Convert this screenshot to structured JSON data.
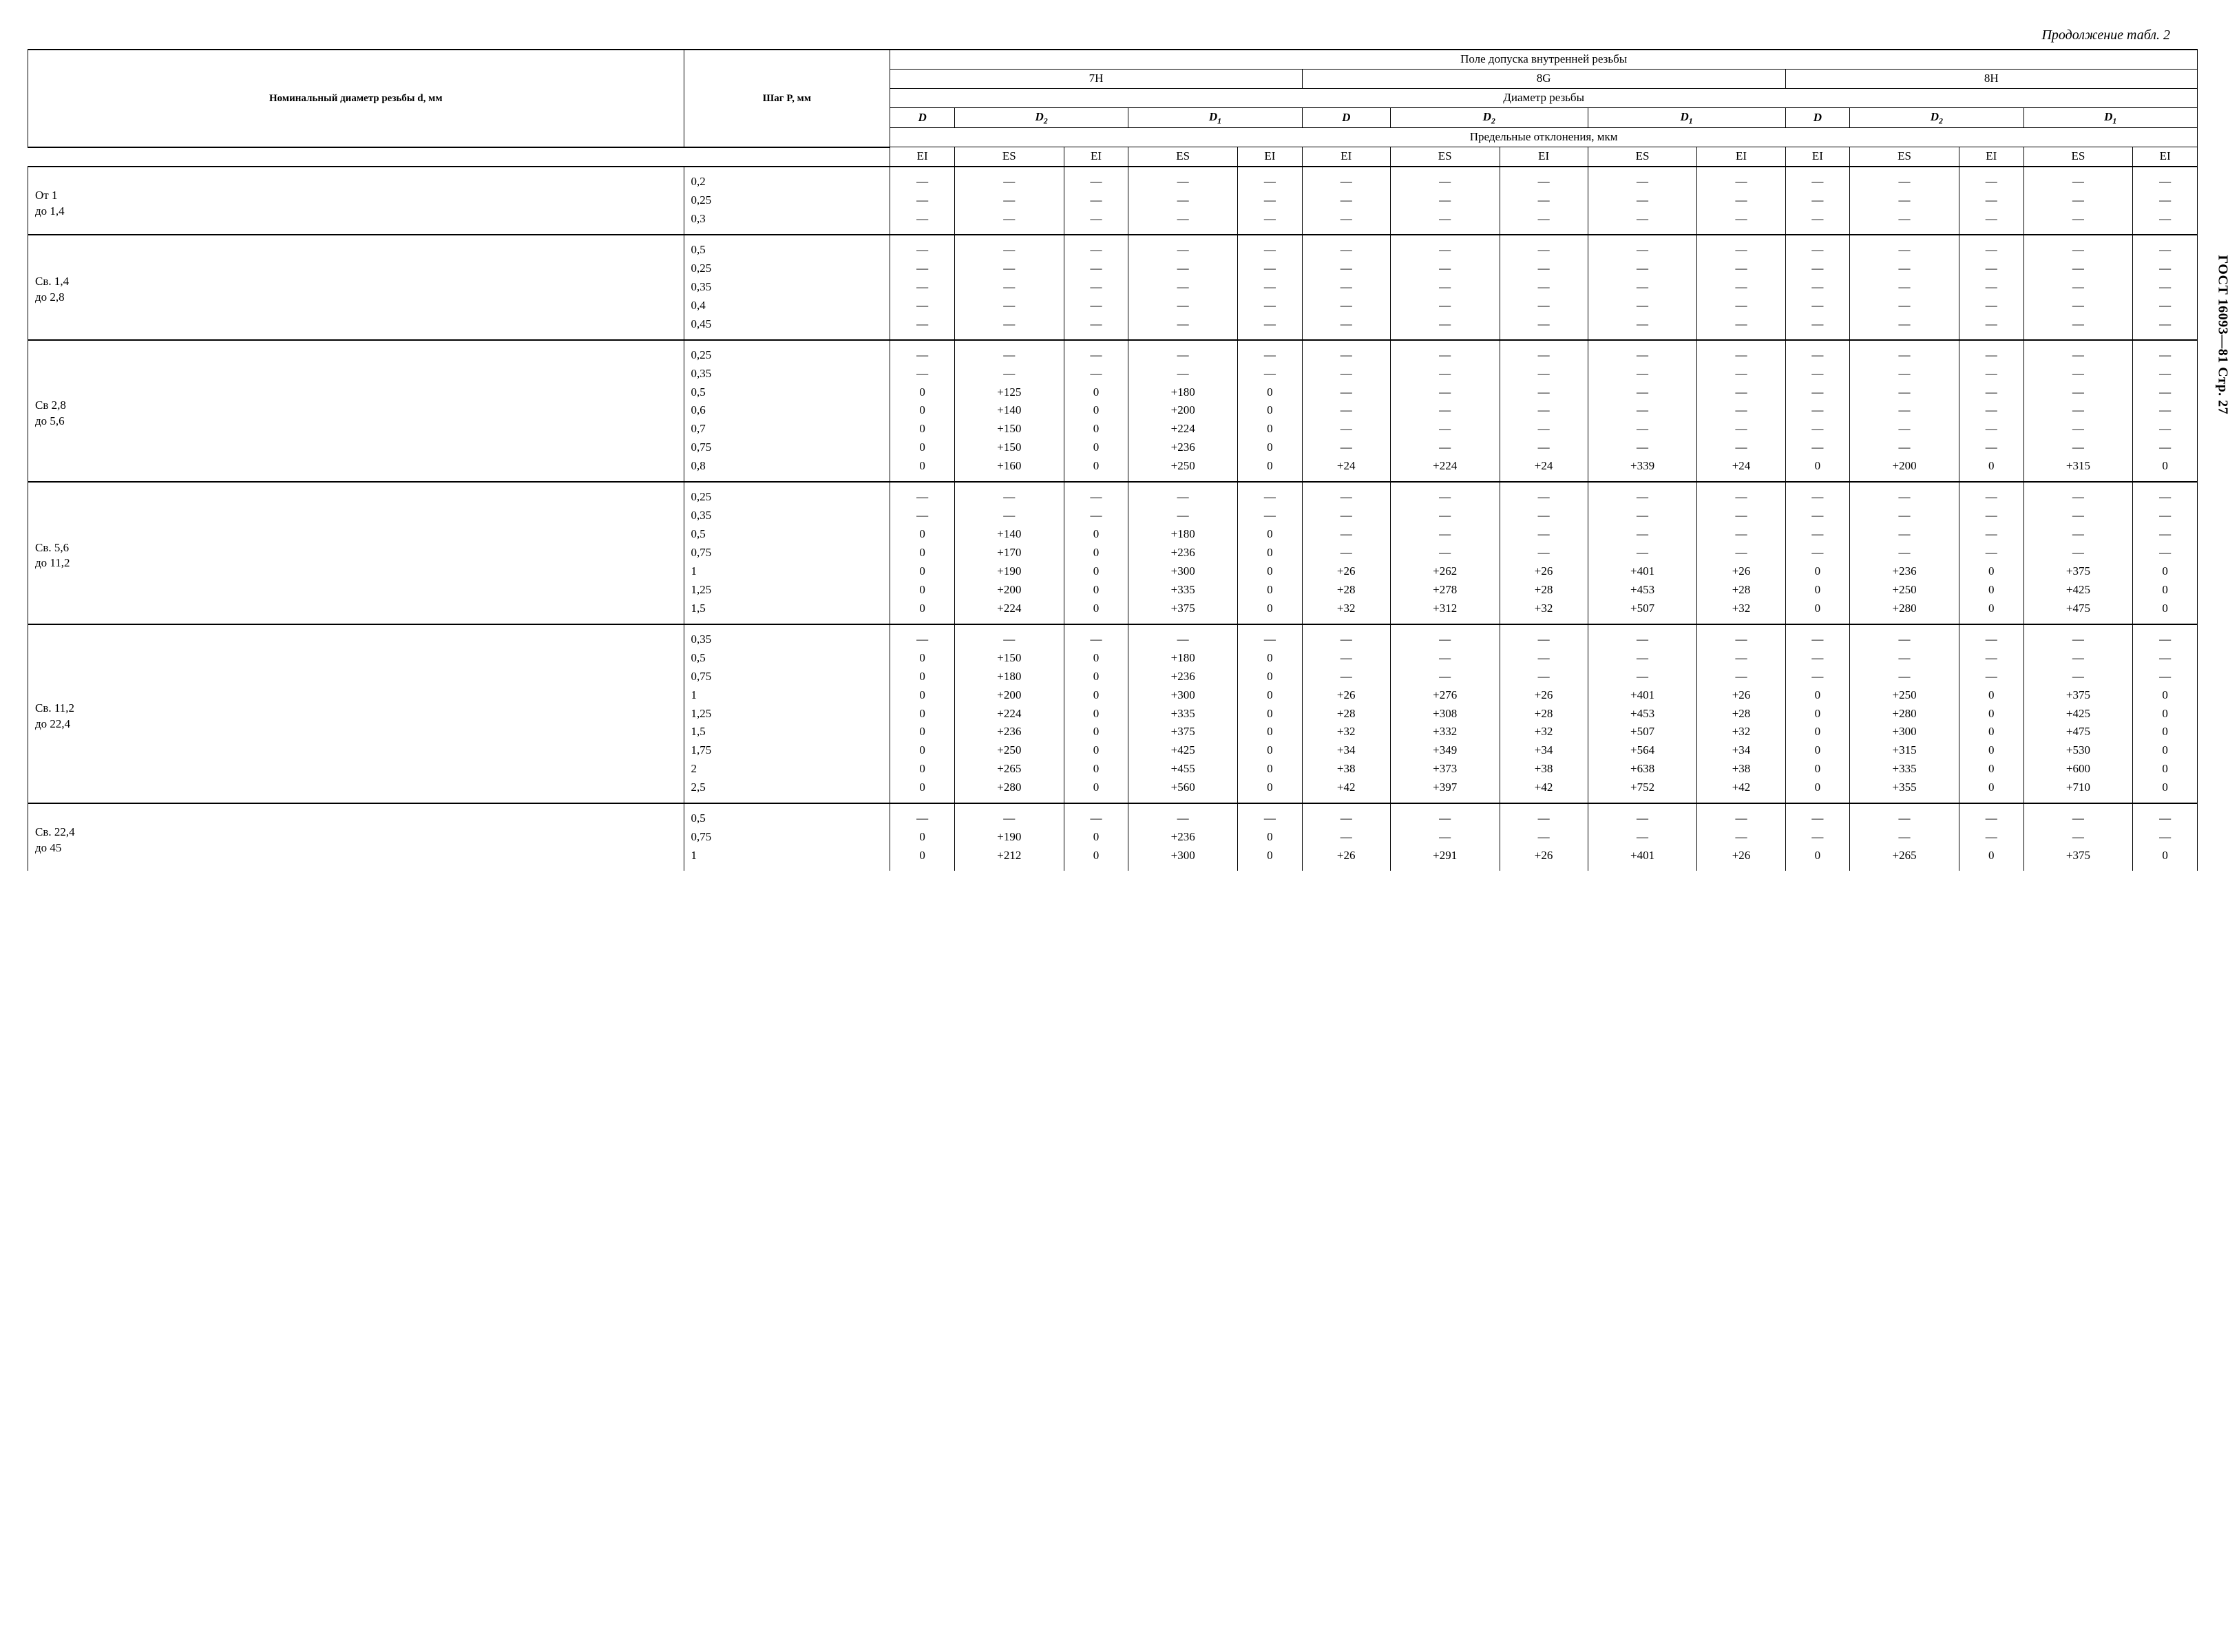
{
  "continuation_label": "Продолжение табл. 2",
  "side_label": "ГОСТ 16093—81 Стр. 27",
  "headers": {
    "nominal_diameter": "Номинальный диаметр резьбы d, мм",
    "pitch": "Шаг P, мм",
    "tolerance_field": "Поле допуска внутренней резьбы",
    "tol_7H": "7H",
    "tol_8G": "8G",
    "tol_8H": "8H",
    "thread_diameter": "Диаметр резьбы",
    "D": "D",
    "D2": "D₂",
    "D1": "D₁",
    "limit_deviations": "Предельные отклонения, мкм",
    "EI": "EI",
    "ES": "ES"
  },
  "groups": [
    {
      "label": "От 1 до 1,4",
      "rows": [
        {
          "pitch": "0,2",
          "c": [
            "—",
            "—",
            "—",
            "—",
            "—",
            "—",
            "—",
            "—",
            "—",
            "—",
            "—",
            "—",
            "—",
            "—",
            "—"
          ]
        },
        {
          "pitch": "0,25",
          "c": [
            "—",
            "—",
            "—",
            "—",
            "—",
            "—",
            "—",
            "—",
            "—",
            "—",
            "—",
            "—",
            "—",
            "—",
            "—"
          ]
        },
        {
          "pitch": "0,3",
          "c": [
            "—",
            "—",
            "—",
            "—",
            "—",
            "—",
            "—",
            "—",
            "—",
            "—",
            "—",
            "—",
            "—",
            "—",
            "—"
          ]
        }
      ]
    },
    {
      "label": "Св. 1,4 до 2,8",
      "rows": [
        {
          "pitch": "0,5",
          "c": [
            "—",
            "—",
            "—",
            "—",
            "—",
            "—",
            "—",
            "—",
            "—",
            "—",
            "—",
            "—",
            "—",
            "—",
            "—"
          ]
        },
        {
          "pitch": "0,25",
          "c": [
            "—",
            "—",
            "—",
            "—",
            "—",
            "—",
            "—",
            "—",
            "—",
            "—",
            "—",
            "—",
            "—",
            "—",
            "—"
          ]
        },
        {
          "pitch": "0,35",
          "c": [
            "—",
            "—",
            "—",
            "—",
            "—",
            "—",
            "—",
            "—",
            "—",
            "—",
            "—",
            "—",
            "—",
            "—",
            "—"
          ]
        },
        {
          "pitch": "0,4",
          "c": [
            "—",
            "—",
            "—",
            "—",
            "—",
            "—",
            "—",
            "—",
            "—",
            "—",
            "—",
            "—",
            "—",
            "—",
            "—"
          ]
        },
        {
          "pitch": "0,45",
          "c": [
            "—",
            "—",
            "—",
            "—",
            "—",
            "—",
            "—",
            "—",
            "—",
            "—",
            "—",
            "—",
            "—",
            "—",
            "—"
          ]
        }
      ]
    },
    {
      "label": "Св 2,8 до 5,6",
      "rows": [
        {
          "pitch": "0,25",
          "c": [
            "—",
            "—",
            "—",
            "—",
            "—",
            "—",
            "—",
            "—",
            "—",
            "—",
            "—",
            "—",
            "—",
            "—",
            "—"
          ]
        },
        {
          "pitch": "0,35",
          "c": [
            "—",
            "—",
            "—",
            "—",
            "—",
            "—",
            "—",
            "—",
            "—",
            "—",
            "—",
            "—",
            "—",
            "—",
            "—"
          ]
        },
        {
          "pitch": "0,5",
          "c": [
            "0",
            "+125",
            "0",
            "+180",
            "0",
            "—",
            "—",
            "—",
            "—",
            "—",
            "—",
            "—",
            "—",
            "—",
            "—"
          ]
        },
        {
          "pitch": "0,6",
          "c": [
            "0",
            "+140",
            "0",
            "+200",
            "0",
            "—",
            "—",
            "—",
            "—",
            "—",
            "—",
            "—",
            "—",
            "—",
            "—"
          ]
        },
        {
          "pitch": "0,7",
          "c": [
            "0",
            "+150",
            "0",
            "+224",
            "0",
            "—",
            "—",
            "—",
            "—",
            "—",
            "—",
            "—",
            "—",
            "—",
            "—"
          ]
        },
        {
          "pitch": "0,75",
          "c": [
            "0",
            "+150",
            "0",
            "+236",
            "0",
            "—",
            "—",
            "—",
            "—",
            "—",
            "—",
            "—",
            "—",
            "—",
            "—"
          ]
        },
        {
          "pitch": "0,8",
          "c": [
            "0",
            "+160",
            "0",
            "+250",
            "0",
            "+24",
            "+224",
            "+24",
            "+339",
            "+24",
            "0",
            "+200",
            "0",
            "+315",
            "0"
          ]
        }
      ]
    },
    {
      "label": "Св. 5,6 до 11,2",
      "rows": [
        {
          "pitch": "0,25",
          "c": [
            "—",
            "—",
            "—",
            "—",
            "—",
            "—",
            "—",
            "—",
            "—",
            "—",
            "—",
            "—",
            "—",
            "—",
            "—"
          ]
        },
        {
          "pitch": "0,35",
          "c": [
            "—",
            "—",
            "—",
            "—",
            "—",
            "—",
            "—",
            "—",
            "—",
            "—",
            "—",
            "—",
            "—",
            "—",
            "—"
          ]
        },
        {
          "pitch": "0,5",
          "c": [
            "0",
            "+140",
            "0",
            "+180",
            "0",
            "—",
            "—",
            "—",
            "—",
            "—",
            "—",
            "—",
            "—",
            "—",
            "—"
          ]
        },
        {
          "pitch": "0,75",
          "c": [
            "0",
            "+170",
            "0",
            "+236",
            "0",
            "—",
            "—",
            "—",
            "—",
            "—",
            "—",
            "—",
            "—",
            "—",
            "—"
          ]
        },
        {
          "pitch": "1",
          "c": [
            "0",
            "+190",
            "0",
            "+300",
            "0",
            "+26",
            "+262",
            "+26",
            "+401",
            "+26",
            "0",
            "+236",
            "0",
            "+375",
            "0"
          ]
        },
        {
          "pitch": "1,25",
          "c": [
            "0",
            "+200",
            "0",
            "+335",
            "0",
            "+28",
            "+278",
            "+28",
            "+453",
            "+28",
            "0",
            "+250",
            "0",
            "+425",
            "0"
          ]
        },
        {
          "pitch": "1,5",
          "c": [
            "0",
            "+224",
            "0",
            "+375",
            "0",
            "+32",
            "+312",
            "+32",
            "+507",
            "+32",
            "0",
            "+280",
            "0",
            "+475",
            "0"
          ]
        }
      ]
    },
    {
      "label": "Св. 11,2 до 22,4",
      "rows": [
        {
          "pitch": "0,35",
          "c": [
            "—",
            "—",
            "—",
            "—",
            "—",
            "—",
            "—",
            "—",
            "—",
            "—",
            "—",
            "—",
            "—",
            "—",
            "—"
          ]
        },
        {
          "pitch": "0,5",
          "c": [
            "0",
            "+150",
            "0",
            "+180",
            "0",
            "—",
            "—",
            "—",
            "—",
            "—",
            "—",
            "—",
            "—",
            "—",
            "—"
          ]
        },
        {
          "pitch": "0,75",
          "c": [
            "0",
            "+180",
            "0",
            "+236",
            "0",
            "—",
            "—",
            "—",
            "—",
            "—",
            "—",
            "—",
            "—",
            "—",
            "—"
          ]
        },
        {
          "pitch": "1",
          "c": [
            "0",
            "+200",
            "0",
            "+300",
            "0",
            "+26",
            "+276",
            "+26",
            "+401",
            "+26",
            "0",
            "+250",
            "0",
            "+375",
            "0"
          ]
        },
        {
          "pitch": "1,25",
          "c": [
            "0",
            "+224",
            "0",
            "+335",
            "0",
            "+28",
            "+308",
            "+28",
            "+453",
            "+28",
            "0",
            "+280",
            "0",
            "+425",
            "0"
          ]
        },
        {
          "pitch": "1,5",
          "c": [
            "0",
            "+236",
            "0",
            "+375",
            "0",
            "+32",
            "+332",
            "+32",
            "+507",
            "+32",
            "0",
            "+300",
            "0",
            "+475",
            "0"
          ]
        },
        {
          "pitch": "1,75",
          "c": [
            "0",
            "+250",
            "0",
            "+425",
            "0",
            "+34",
            "+349",
            "+34",
            "+564",
            "+34",
            "0",
            "+315",
            "0",
            "+530",
            "0"
          ]
        },
        {
          "pitch": "2",
          "c": [
            "0",
            "+265",
            "0",
            "+455",
            "0",
            "+38",
            "+373",
            "+38",
            "+638",
            "+38",
            "0",
            "+335",
            "0",
            "+600",
            "0"
          ]
        },
        {
          "pitch": "2,5",
          "c": [
            "0",
            "+280",
            "0",
            "+560",
            "0",
            "+42",
            "+397",
            "+42",
            "+752",
            "+42",
            "0",
            "+355",
            "0",
            "+710",
            "0"
          ]
        }
      ]
    },
    {
      "label": "Св. 22,4 до 45",
      "rows": [
        {
          "pitch": "0,5",
          "c": [
            "—",
            "—",
            "—",
            "—",
            "—",
            "—",
            "—",
            "—",
            "—",
            "—",
            "—",
            "—",
            "—",
            "—",
            "—"
          ]
        },
        {
          "pitch": "0,75",
          "c": [
            "0",
            "+190",
            "0",
            "+236",
            "0",
            "—",
            "—",
            "—",
            "—",
            "—",
            "—",
            "—",
            "—",
            "—",
            "—"
          ]
        },
        {
          "pitch": "1",
          "c": [
            "0",
            "+212",
            "0",
            "+300",
            "0",
            "+26",
            "+291",
            "+26",
            "+401",
            "+26",
            "0",
            "+265",
            "0",
            "+375",
            "0"
          ]
        }
      ]
    }
  ]
}
